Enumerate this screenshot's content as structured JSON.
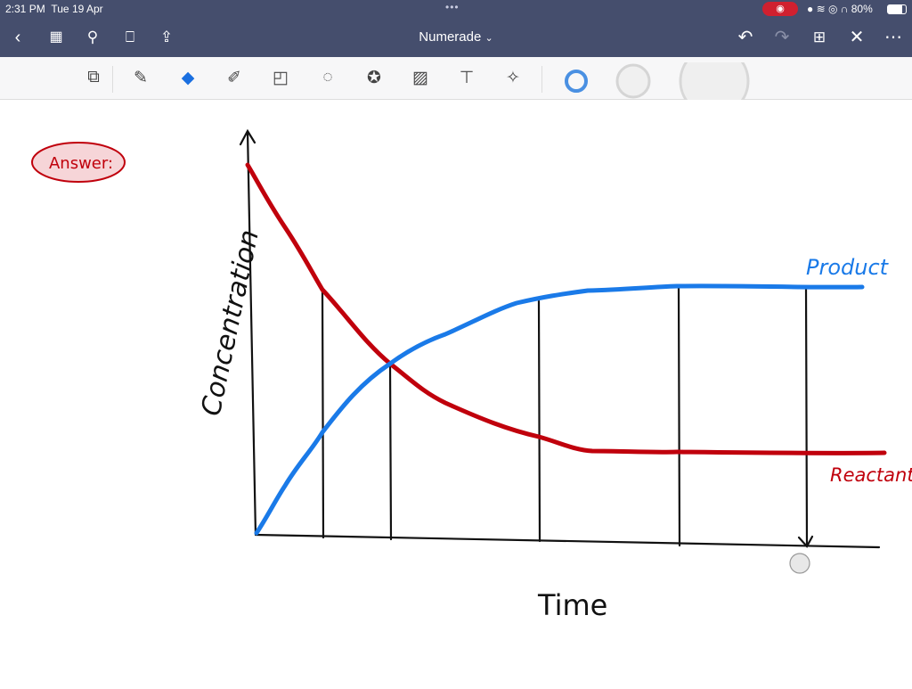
{
  "status_bar": {
    "time": "2:31 PM",
    "date": "Tue 19 Apr",
    "battery": "80%",
    "battery_level": 0.8
  },
  "nav": {
    "title": "Numerade",
    "title_chevron": "⌄"
  },
  "toolbar": {
    "colors": {
      "accent": "#4a90e2",
      "header": "#454e6d"
    }
  },
  "note": {
    "answer_label": "Answer:",
    "y_axis_label": "Concentration",
    "x_axis_label": "Time",
    "product_label": "Product",
    "reactant_label": "Reactant",
    "product_color": "#1a7ae8",
    "reactant_color": "#c0000c"
  }
}
